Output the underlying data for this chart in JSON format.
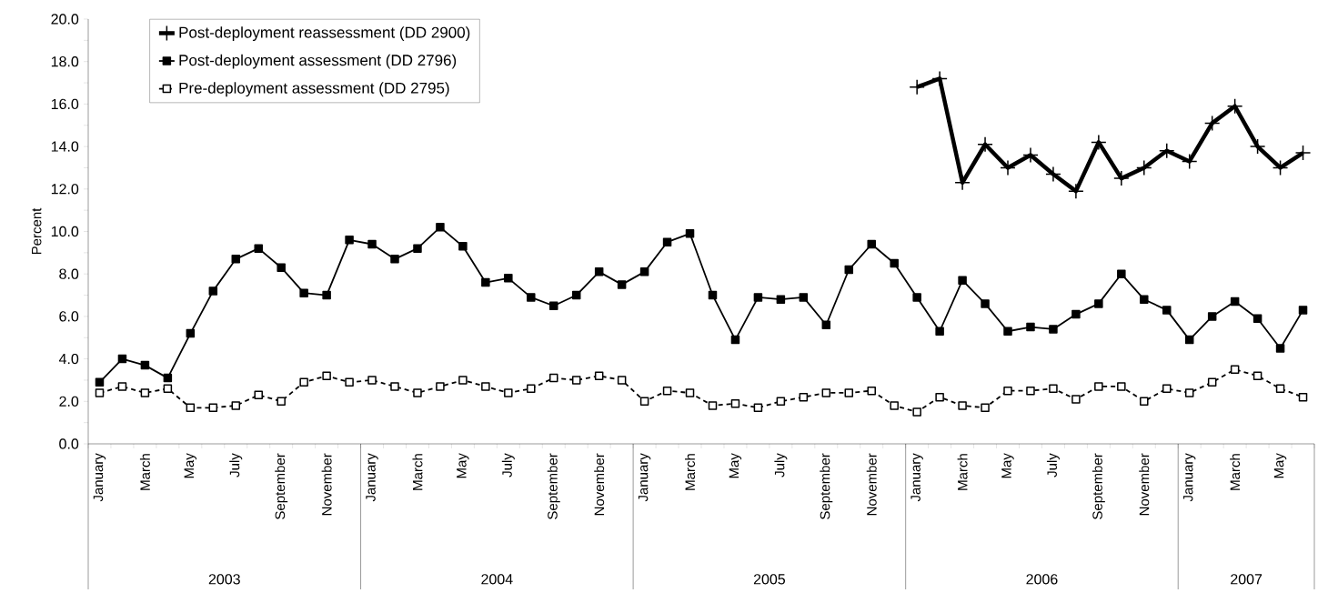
{
  "chart_data": {
    "type": "line",
    "ylabel": "Percent",
    "categories": [
      "January",
      null,
      "March",
      null,
      "May",
      null,
      "July",
      null,
      "September",
      null,
      "November",
      null,
      "January",
      null,
      "March",
      null,
      "May",
      null,
      "July",
      null,
      "September",
      null,
      "November",
      null,
      "January",
      null,
      "March",
      null,
      "May",
      null,
      "July",
      null,
      "September",
      null,
      "November",
      null,
      "January",
      null,
      "March",
      null,
      "May",
      null,
      "July",
      null,
      "September",
      null,
      "November",
      null,
      "January",
      null,
      "March",
      null,
      "May",
      null
    ],
    "annotations": [
      "2003",
      "2004",
      "2005",
      "2006",
      "2007"
    ],
    "series": [
      {
        "name": "Post-deployment reassessment (DD 2900)",
        "color": "#000000",
        "marker": "cross",
        "line_style": "solid",
        "values": [
          null,
          null,
          null,
          null,
          null,
          null,
          null,
          null,
          null,
          null,
          null,
          null,
          null,
          null,
          null,
          null,
          null,
          null,
          null,
          null,
          null,
          null,
          null,
          null,
          null,
          null,
          null,
          null,
          null,
          null,
          null,
          null,
          null,
          null,
          null,
          null,
          16.8,
          17.2,
          12.3,
          14.1,
          13.0,
          13.6,
          12.7,
          11.9,
          14.2,
          12.5,
          13.0,
          13.8,
          13.3,
          15.1,
          15.9,
          14.0,
          13.0,
          13.7
        ]
      },
      {
        "name": "Post-deployment assessment (DD 2796)",
        "color": "#000000",
        "marker": "square",
        "line_style": "solid",
        "values": [
          2.9,
          4.0,
          3.7,
          3.1,
          5.2,
          7.2,
          8.7,
          9.2,
          8.3,
          7.1,
          7.0,
          9.6,
          9.4,
          8.7,
          9.2,
          10.2,
          9.3,
          7.6,
          7.8,
          6.9,
          6.5,
          7.0,
          8.1,
          7.5,
          8.1,
          9.5,
          9.9,
          7.0,
          4.9,
          6.9,
          6.8,
          6.9,
          5.6,
          8.2,
          9.4,
          8.5,
          6.9,
          5.3,
          7.7,
          6.6,
          5.3,
          5.5,
          5.4,
          6.1,
          6.6,
          8.0,
          6.8,
          6.3,
          4.9,
          6.0,
          6.7,
          5.9,
          4.5,
          6.3
        ]
      },
      {
        "name": "Pre-deployment assessment (DD 2795)",
        "color": "#000000",
        "marker": "square",
        "line_style": "dashed",
        "values": [
          2.4,
          2.7,
          2.4,
          2.6,
          1.7,
          1.7,
          1.8,
          2.3,
          2.0,
          2.9,
          3.2,
          2.9,
          3.0,
          2.7,
          2.4,
          2.7,
          3.0,
          2.7,
          2.4,
          2.6,
          3.1,
          3.0,
          3.2,
          3.0,
          2.0,
          2.5,
          2.4,
          1.8,
          1.9,
          1.7,
          2.0,
          2.2,
          2.4,
          2.4,
          2.5,
          1.8,
          1.5,
          2.2,
          1.8,
          1.7,
          2.5,
          2.5,
          2.6,
          2.1,
          2.7,
          2.7,
          2.0,
          2.6,
          2.4,
          2.9,
          3.5,
          3.2,
          2.6,
          2.2
        ]
      }
    ],
    "ylim": [
      0,
      20
    ],
    "yticks": [
      {
        "value": 0,
        "label": "0.0"
      },
      {
        "value": 2,
        "label": "2.0"
      },
      {
        "value": 4,
        "label": "4.0"
      },
      {
        "value": 6,
        "label": "6.0"
      },
      {
        "value": 8,
        "label": "8.0"
      },
      {
        "value": 10,
        "label": "10.0"
      },
      {
        "value": 12,
        "label": "12.0"
      },
      {
        "value": 14,
        "label": "14.0"
      },
      {
        "value": 16,
        "label": "16.0"
      },
      {
        "value": 18,
        "label": "18.0"
      },
      {
        "value": 20,
        "label": "20.0"
      }
    ],
    "grid": false,
    "legend": "top left"
  }
}
